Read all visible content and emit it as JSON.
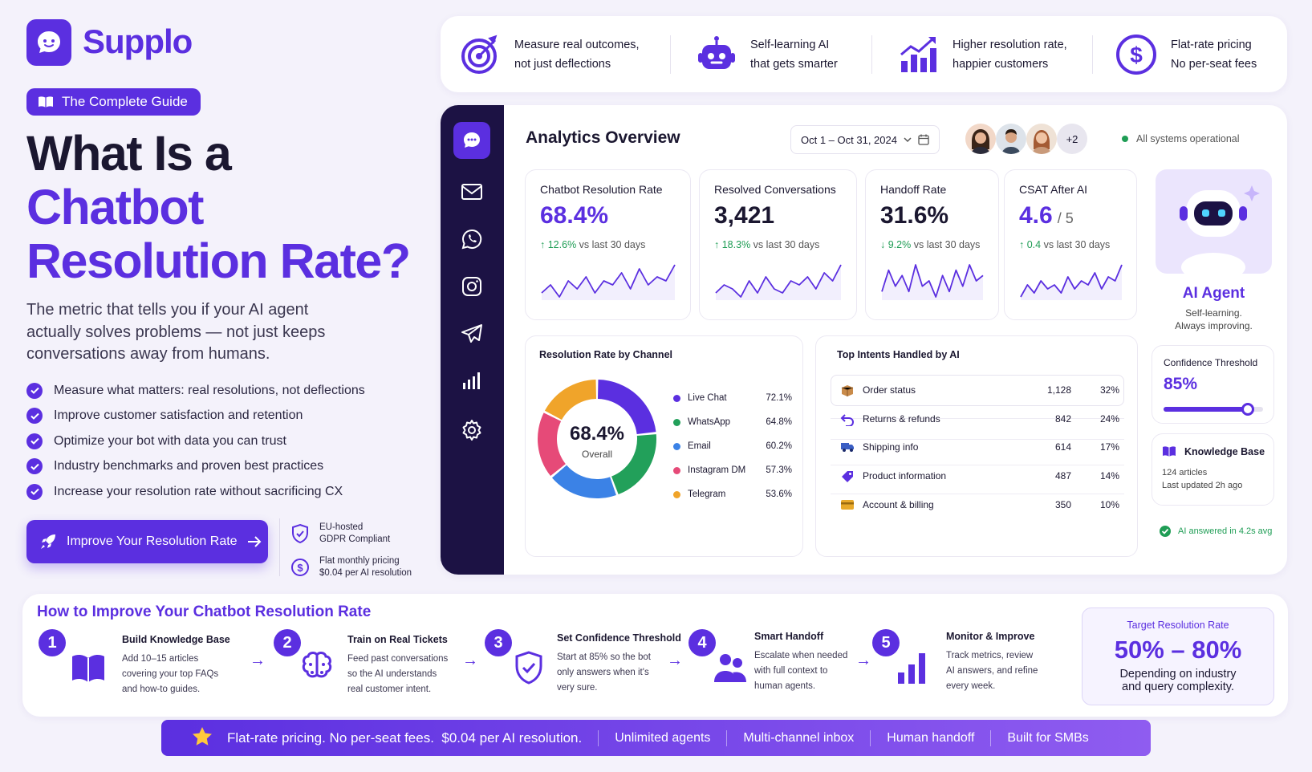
{
  "brand": {
    "name": "Supplo",
    "guide_badge": "The Complete Guide"
  },
  "hero": {
    "title_line1": "What Is a",
    "title_line2": "Chatbot",
    "title_line3": "Resolution Rate?",
    "lede": "The metric that tells you if your AI agent actually solves problems — not just keeps conversations away from humans.",
    "checklist": [
      "Measure what matters: real resolutions, not deflections",
      "Improve customer satisfaction and retention",
      "Optimize your bot with data you can trust",
      "Industry benchmarks and proven best practices",
      "Increase your resolution rate without sacrificing CX"
    ],
    "cta_label": "Improve Your Resolution Rate",
    "trust": [
      {
        "icon": "shield-icon",
        "line1": "EU-hosted",
        "line2": "GDPR Compliant"
      },
      {
        "icon": "dollar-icon",
        "line1": "Flat monthly pricing",
        "line2": "$0.04 per AI resolution"
      }
    ]
  },
  "features": [
    {
      "icon": "target-icon",
      "line1": "Measure real outcomes,",
      "line2": "not just deflections"
    },
    {
      "icon": "robot-icon",
      "line1": "Self-learning AI",
      "line2": "that gets smarter"
    },
    {
      "icon": "growth-chart-icon",
      "line1": "Higher resolution rate,",
      "line2": "happier customers"
    },
    {
      "icon": "dollar-circle-icon",
      "line1": "Flat-rate pricing",
      "line2": "No per-seat fees"
    }
  ],
  "dashboard": {
    "title": "Analytics Overview",
    "date_range": "Oct 1 – Oct 31, 2024",
    "more_avatars": "+2",
    "status": "All systems operational",
    "sidebar_icons": [
      "chat-icon",
      "mail-icon",
      "whatsapp-icon",
      "instagram-icon",
      "send-icon",
      "analytics-icon",
      "settings-icon"
    ],
    "kpis": [
      {
        "title": "Chatbot Resolution Rate",
        "value": "68.4%",
        "suffix": "",
        "delta": "12.6%",
        "direction": "up",
        "compare": "vs last 30 days",
        "value_color": "#5b2fe0",
        "trend": [
          3,
          5,
          2,
          6,
          4,
          7,
          3,
          6,
          5,
          8,
          4,
          9,
          5,
          7,
          6,
          10
        ]
      },
      {
        "title": "Resolved Conversations",
        "value": "3,421",
        "suffix": "",
        "delta": "18.3%",
        "direction": "up",
        "compare": "vs last 30 days",
        "value_color": "#1b1730",
        "trend": [
          3,
          5,
          4,
          2,
          6,
          3,
          7,
          4,
          3,
          6,
          5,
          7,
          4,
          8,
          6,
          10
        ]
      },
      {
        "title": "Handoff Rate",
        "value": "31.6%",
        "suffix": "",
        "delta": "9.2%",
        "direction": "down",
        "compare": "vs last 30 days",
        "value_color": "#1b1730",
        "trend": [
          4,
          8,
          5,
          7,
          4,
          9,
          5,
          6,
          3,
          7,
          4,
          8,
          5,
          9,
          6,
          7
        ]
      },
      {
        "title": "CSAT After AI",
        "value": "4.6",
        "suffix": "/ 5",
        "delta": "0.4",
        "direction": "up",
        "compare": "vs last 30 days",
        "value_color": "#5b2fe0",
        "trend": [
          3,
          6,
          4,
          7,
          5,
          6,
          4,
          8,
          5,
          7,
          6,
          9,
          5,
          8,
          7,
          11
        ]
      }
    ],
    "channels": {
      "title": "Resolution Rate by Channel",
      "center_value": "68.4%",
      "center_label": "Overall",
      "items": [
        {
          "name": "Live Chat",
          "value": "72.1%",
          "color": "#5b2fe0"
        },
        {
          "name": "WhatsApp",
          "value": "64.8%",
          "color": "#22a05a"
        },
        {
          "name": "Email",
          "value": "60.2%",
          "color": "#3b82e6"
        },
        {
          "name": "Instagram DM",
          "value": "57.3%",
          "color": "#e64a78"
        },
        {
          "name": "Telegram",
          "value": "53.6%",
          "color": "#f0a42a"
        }
      ]
    },
    "intents": {
      "title": "Top Intents Handled by AI",
      "rows": [
        {
          "icon": "box-icon",
          "name": "Order status",
          "count": "1,128",
          "pct": "32%"
        },
        {
          "icon": "return-icon",
          "name": "Returns & refunds",
          "count": "842",
          "pct": "24%"
        },
        {
          "icon": "truck-icon",
          "name": "Shipping info",
          "count": "614",
          "pct": "17%"
        },
        {
          "icon": "tag-icon",
          "name": "Product information",
          "count": "487",
          "pct": "14%"
        },
        {
          "icon": "card-icon",
          "name": "Account & billing",
          "count": "350",
          "pct": "10%"
        }
      ]
    },
    "agent": {
      "title": "AI Agent",
      "line1": "Self-learning.",
      "line2": "Always improving."
    },
    "confidence": {
      "label": "Confidence Threshold",
      "value": "85%",
      "level": 0.85
    },
    "knowledge": {
      "title": "Knowledge Base",
      "articles": "124 articles",
      "updated": "Last updated 2h ago"
    },
    "answered": "AI answered in 4.2s avg"
  },
  "steps_section": {
    "title": "How to Improve Your Chatbot Resolution Rate",
    "steps": [
      {
        "num": "1",
        "icon": "book-icon",
        "title": "Build Knowledge Base",
        "desc": [
          "Add 10–15 articles",
          "covering your top FAQs",
          "and how-to guides."
        ]
      },
      {
        "num": "2",
        "icon": "brain-icon",
        "title": "Train on Real Tickets",
        "desc": [
          "Feed past conversations",
          "so the AI understands",
          "real customer intent."
        ]
      },
      {
        "num": "3",
        "icon": "shield-check-icon",
        "title": "Set Confidence Threshold",
        "desc": [
          "Start at 85% so the bot",
          "only answers when it's",
          "very sure."
        ]
      },
      {
        "num": "4",
        "icon": "users-icon",
        "title": "Smart Handoff",
        "desc": [
          "Escalate when needed",
          "with full context to",
          "human agents."
        ]
      },
      {
        "num": "5",
        "icon": "bar-chart-icon",
        "title": "Monitor & Improve",
        "desc": [
          "Track metrics, review",
          "AI answers, and refine",
          "every week."
        ]
      }
    ],
    "target": {
      "label": "Target Resolution Rate",
      "value": "50% – 80%",
      "line1": "Depending on industry",
      "line2": "and query complexity."
    }
  },
  "bottom_bar": {
    "main": "Flat-rate pricing. No per-seat fees.  $0.04 per AI resolution.",
    "items": [
      "Unlimited agents",
      "Multi-channel inbox",
      "Human handoff",
      "Built for SMBs"
    ]
  },
  "colors": {
    "accent": "#5b2fe0",
    "sidebar": "#1c1244",
    "positive": "#1f9d55",
    "background": "#f4f2fb"
  }
}
